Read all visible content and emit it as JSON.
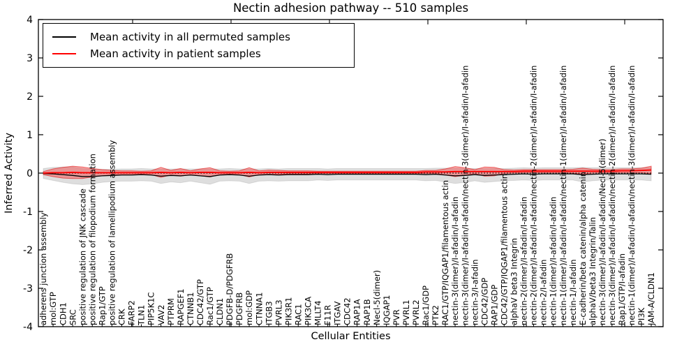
{
  "figure": {
    "title": "Nectin adhesion pathway -- 510 samples",
    "xlabel": "Cellular Entities",
    "ylabel": "Inferred Activity",
    "legend": [
      {
        "label": "Mean activity in all permuted samples",
        "color": "#000000"
      },
      {
        "label": "Mean activity in patient samples",
        "color": "#ff0000"
      }
    ]
  },
  "chart_data": {
    "type": "line",
    "title": "Nectin adhesion pathway -- 510 samples",
    "xlabel": "Cellular Entities",
    "ylabel": "Inferred Activity",
    "ylim": [
      -4,
      4
    ],
    "yticks": [
      -4,
      -3,
      -2,
      -1,
      0,
      1,
      2,
      3,
      4
    ],
    "grid": false,
    "legend_position": "upper left",
    "zero_line": {
      "y": 0,
      "style": "dotted",
      "color": "#000000"
    },
    "band_colors": {
      "permuted": "rgba(0,0,0,0.13)",
      "patient": "rgba(255,0,0,0.32)"
    },
    "categories": [
      "adherens junction assembly",
      "mol:GTP",
      "CDH1",
      "SRC",
      "positive regulation of JNK cascade",
      "positive regulation of filopodium formation",
      "Rap1/GTP",
      "positive regulation of lamellipodium assembly",
      "CRK",
      "FARP2",
      "TLN1",
      "PIP5K1C",
      "VAV2",
      "PTPRM",
      "RAPGEF1",
      "CTNNB1",
      "CDC42/GTP",
      "Rac1/GTP",
      "CLDN1",
      "PDGFB-D/PDGFRB",
      "PDGFRB",
      "mol:GDP",
      "CTNNA1",
      "ITGB3",
      "PVRL3",
      "PIK3R1",
      "RAC1",
      "PIK3CA",
      "MLLT4",
      "F11R",
      "ITGAV",
      "CDC42",
      "RAP1A",
      "RAP1B",
      "Necl-5(dimer)",
      "IQGAP1",
      "PVR",
      "PVRL1",
      "PVRL2",
      "Rac1/GDP",
      "PTK2",
      "RAC1/GTP/IQGAP1/filamentous actin",
      "nectin-3(dimer)/I-afadin/I-afadin",
      "nectin-3(dimer)/I-afadin/I-afadin/nectin-3(dimer)/I-afadin/I-afadin",
      "nectin-3/I-afadin",
      "CDC42/GDP",
      "RAP1/GDP",
      "CDC42/GTP/IQGAP1/filamentous actin",
      "alphaV beta3 Integrin",
      "nectin-2(dimer)/I-afadin/I-afadin",
      "nectin-2(dimer)/I-afadin/I-afadin/nectin-2(dimer)/I-afadin/I-afadin",
      "nectin-2/I-afadin",
      "nectin-1(dimer)/I-afadin/I-afadin",
      "nectin-1(dimer)/I-afadin/I-afadin/nectin-1(dimer)/I-afadin/I-afadin",
      "nectin-1/I-afadin",
      "E-cadherin/beta catenin/alpha catenin",
      "alphaV/beta3 Integrin/Talin",
      "nectin-3(dimer)/I-afadin/I-afadin/Necl-5(dimer)",
      "nectin-3(dimer)/I-afadin/I-afadin/nectin-2(dimer)/I-afadin/I-afadin",
      "Rap1/GTP/I-afadin",
      "nectin-1(dimer)/I-afadin/I-afadin/nectin-3(dimer)/I-afadin/I-afadin",
      "PI3K",
      "JAM-A/CLDN1"
    ],
    "series": [
      {
        "name": "Mean activity in all permuted samples",
        "color": "#000000",
        "values": [
          -0.01,
          -0.02,
          -0.04,
          -0.06,
          -0.09,
          -0.09,
          -0.07,
          -0.06,
          -0.05,
          -0.05,
          -0.04,
          -0.05,
          -0.08,
          -0.06,
          -0.07,
          -0.05,
          -0.07,
          -0.09,
          -0.05,
          -0.04,
          -0.05,
          -0.08,
          -0.05,
          -0.04,
          -0.05,
          -0.04,
          -0.04,
          -0.04,
          -0.03,
          -0.04,
          -0.03,
          -0.03,
          -0.03,
          -0.03,
          -0.03,
          -0.03,
          -0.03,
          -0.03,
          -0.03,
          -0.04,
          -0.03,
          -0.05,
          -0.07,
          -0.06,
          -0.04,
          -0.06,
          -0.05,
          -0.04,
          -0.03,
          -0.02,
          -0.03,
          -0.02,
          -0.02,
          -0.02,
          -0.02,
          -0.04,
          -0.03,
          -0.02,
          -0.02,
          -0.02,
          -0.02,
          -0.02,
          -0.03
        ],
        "band_halfwidth": [
          0.13,
          0.17,
          0.2,
          0.22,
          0.21,
          0.19,
          0.17,
          0.16,
          0.16,
          0.16,
          0.16,
          0.16,
          0.19,
          0.17,
          0.18,
          0.16,
          0.18,
          0.2,
          0.16,
          0.16,
          0.16,
          0.19,
          0.16,
          0.16,
          0.16,
          0.16,
          0.16,
          0.16,
          0.15,
          0.15,
          0.15,
          0.15,
          0.15,
          0.15,
          0.15,
          0.15,
          0.15,
          0.15,
          0.15,
          0.16,
          0.16,
          0.18,
          0.2,
          0.18,
          0.16,
          0.18,
          0.17,
          0.16,
          0.16,
          0.16,
          0.16,
          0.16,
          0.16,
          0.16,
          0.16,
          0.19,
          0.17,
          0.16,
          0.16,
          0.16,
          0.16,
          0.16,
          0.17
        ]
      },
      {
        "name": "Mean activity in patient samples",
        "color": "#ff0000",
        "values": [
          0.0,
          0.01,
          0.01,
          0.02,
          0.01,
          0.01,
          0.01,
          0.01,
          0.01,
          0.01,
          0.01,
          0.01,
          0.02,
          0.01,
          0.02,
          0.01,
          0.02,
          0.02,
          0.01,
          0.01,
          0.01,
          0.02,
          0.01,
          0.02,
          0.02,
          0.02,
          0.02,
          0.02,
          0.02,
          0.02,
          0.02,
          0.02,
          0.02,
          0.02,
          0.02,
          0.02,
          0.02,
          0.02,
          0.02,
          0.03,
          0.03,
          0.03,
          0.04,
          0.04,
          0.04,
          0.04,
          0.04,
          0.04,
          0.04,
          0.05,
          0.05,
          0.05,
          0.05,
          0.05,
          0.05,
          0.05,
          0.05,
          0.05,
          0.05,
          0.06,
          0.06,
          0.07,
          0.08
        ],
        "band_halfwidth": [
          0.04,
          0.1,
          0.14,
          0.16,
          0.15,
          0.11,
          0.08,
          0.06,
          0.05,
          0.05,
          0.04,
          0.05,
          0.13,
          0.06,
          0.1,
          0.05,
          0.09,
          0.12,
          0.05,
          0.04,
          0.05,
          0.12,
          0.05,
          0.06,
          0.05,
          0.04,
          0.04,
          0.04,
          0.03,
          0.03,
          0.03,
          0.03,
          0.03,
          0.03,
          0.03,
          0.03,
          0.03,
          0.03,
          0.03,
          0.04,
          0.04,
          0.08,
          0.13,
          0.1,
          0.05,
          0.12,
          0.11,
          0.05,
          0.04,
          0.04,
          0.04,
          0.04,
          0.04,
          0.04,
          0.05,
          0.08,
          0.05,
          0.04,
          0.04,
          0.05,
          0.05,
          0.06,
          0.1
        ]
      }
    ]
  }
}
